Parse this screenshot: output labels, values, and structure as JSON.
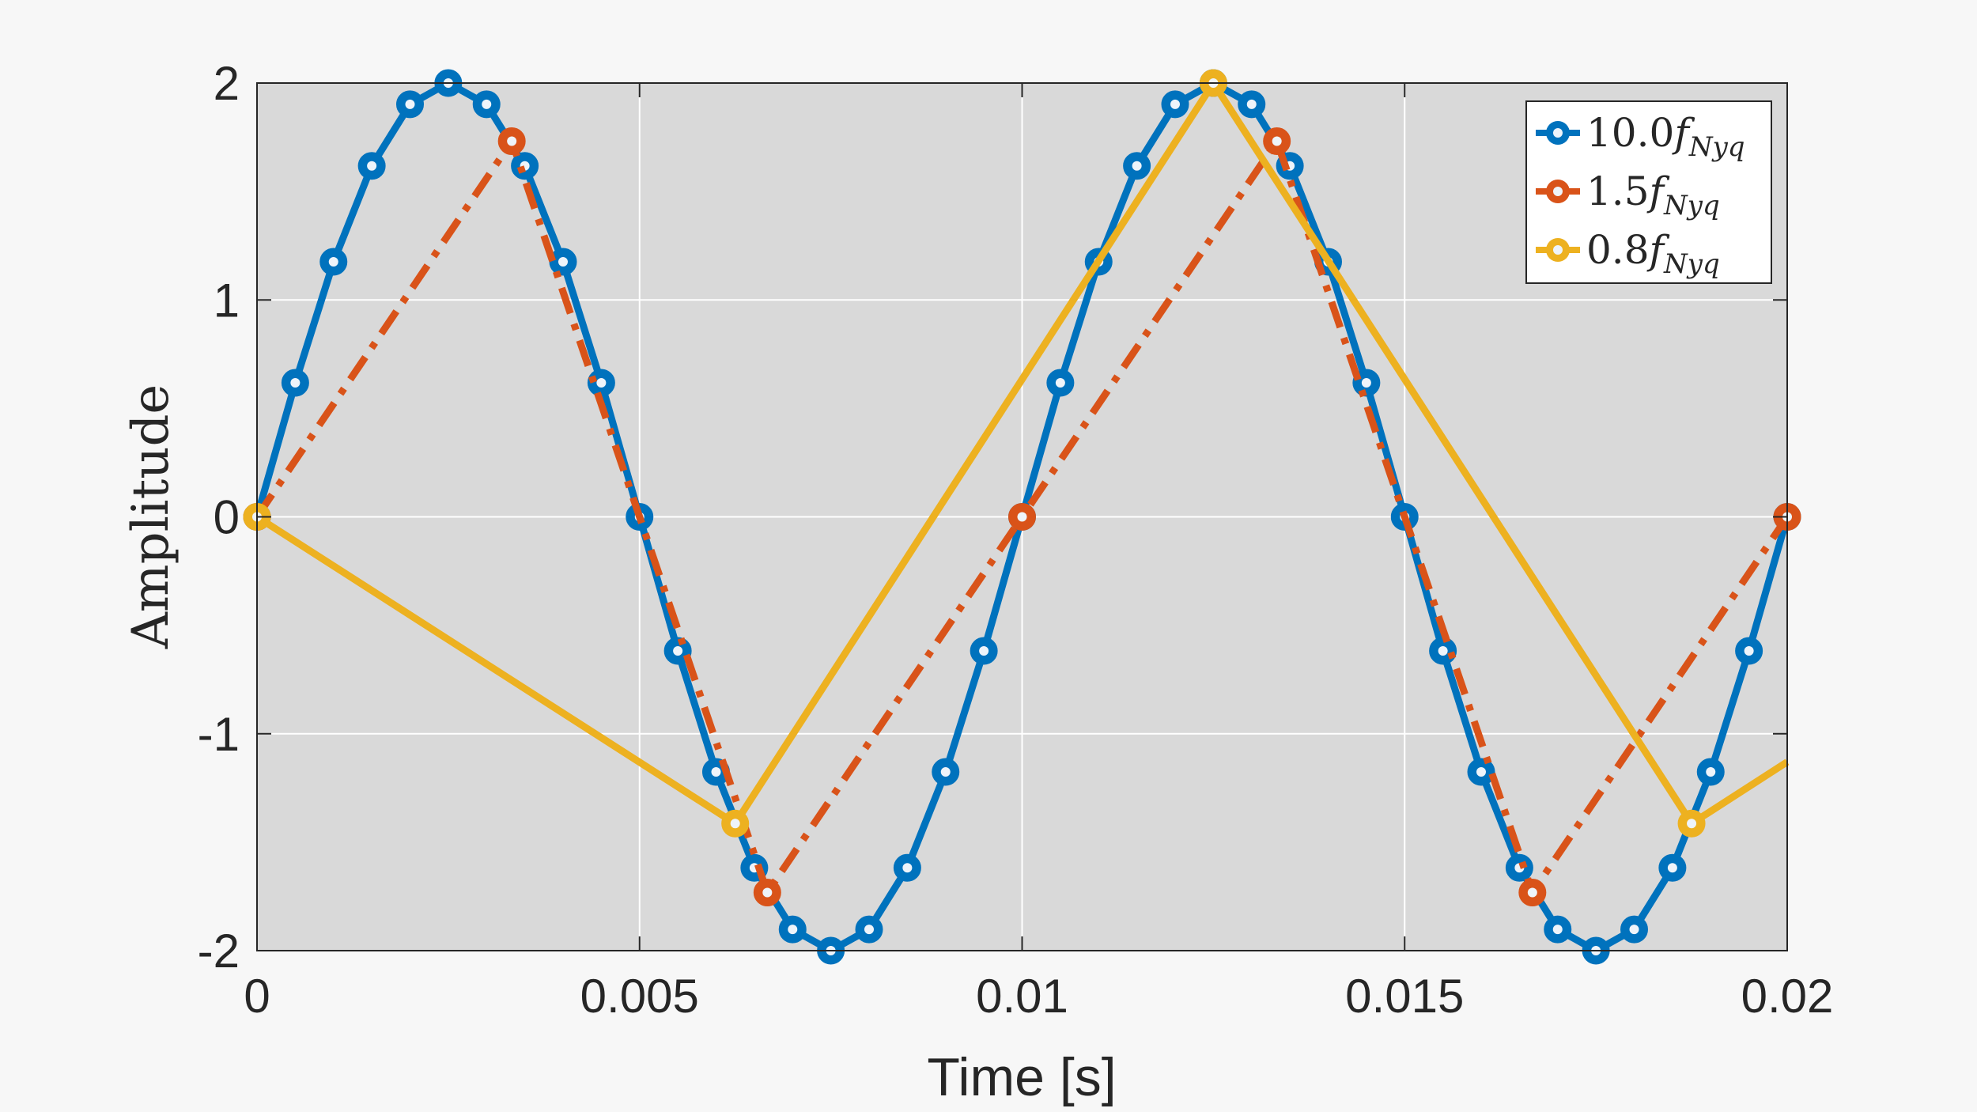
{
  "chart_data": {
    "type": "line",
    "xlabel": "Time [s]",
    "ylabel": "Amplitude",
    "xlim": [
      0,
      0.02
    ],
    "ylim": [
      -2,
      2
    ],
    "xticks": [
      0,
      0.005,
      0.01,
      0.015,
      0.02
    ],
    "xtick_labels": [
      "0",
      "0.005",
      "0.01",
      "0.015",
      "0.02"
    ],
    "yticks": [
      -2,
      -1,
      0,
      1,
      2
    ],
    "ytick_labels": [
      "-2",
      "-1",
      "0",
      "1",
      "2"
    ],
    "grid": true,
    "legend_position": "top-right",
    "background": "#d9d9d9",
    "series": [
      {
        "legend_main": "10.0",
        "legend_italic": "f",
        "legend_sub": "Nyq",
        "color": "#0072bd",
        "line_style": "solid",
        "x": [
          0,
          0.0005,
          0.001,
          0.0015,
          0.002,
          0.0025,
          0.003,
          0.0035,
          0.004,
          0.0045,
          0.005,
          0.0055,
          0.006,
          0.0065,
          0.007,
          0.0075,
          0.008,
          0.0085,
          0.009,
          0.0095,
          0.01,
          0.0105,
          0.011,
          0.0115,
          0.012,
          0.0125,
          0.013,
          0.0135,
          0.014,
          0.0145,
          0.015,
          0.0155,
          0.016,
          0.0165,
          0.017,
          0.0175,
          0.018,
          0.0185,
          0.019,
          0.0195,
          0.02
        ],
        "y": [
          0,
          0.618,
          1.176,
          1.618,
          1.902,
          2,
          1.902,
          1.618,
          1.176,
          0.618,
          0,
          -0.618,
          -1.176,
          -1.618,
          -1.902,
          -2,
          -1.902,
          -1.618,
          -1.176,
          -0.618,
          0,
          0.618,
          1.176,
          1.618,
          1.902,
          2,
          1.902,
          1.618,
          1.176,
          0.618,
          0,
          -0.618,
          -1.176,
          -1.618,
          -1.902,
          -2,
          -1.902,
          -1.618,
          -1.176,
          -0.618,
          0
        ]
      },
      {
        "legend_main": "1.5",
        "legend_italic": "f",
        "legend_sub": "Nyq",
        "color": "#d95319",
        "line_style": "dashdot",
        "x": [
          0,
          0.00333,
          0.00667,
          0.01,
          0.01333,
          0.01667,
          0.02
        ],
        "y": [
          0,
          1.732,
          -1.732,
          0,
          1.732,
          -1.732,
          0
        ]
      },
      {
        "legend_main": "0.8",
        "legend_italic": "f",
        "legend_sub": "Nyq",
        "color": "#edb120",
        "line_style": "solid",
        "x": [
          0,
          0.00625,
          0.0125,
          0.01875
        ],
        "y": [
          0,
          -1.414,
          2,
          -1.414
        ],
        "tail": {
          "x": 0.02,
          "y": -1.13
        }
      }
    ]
  }
}
